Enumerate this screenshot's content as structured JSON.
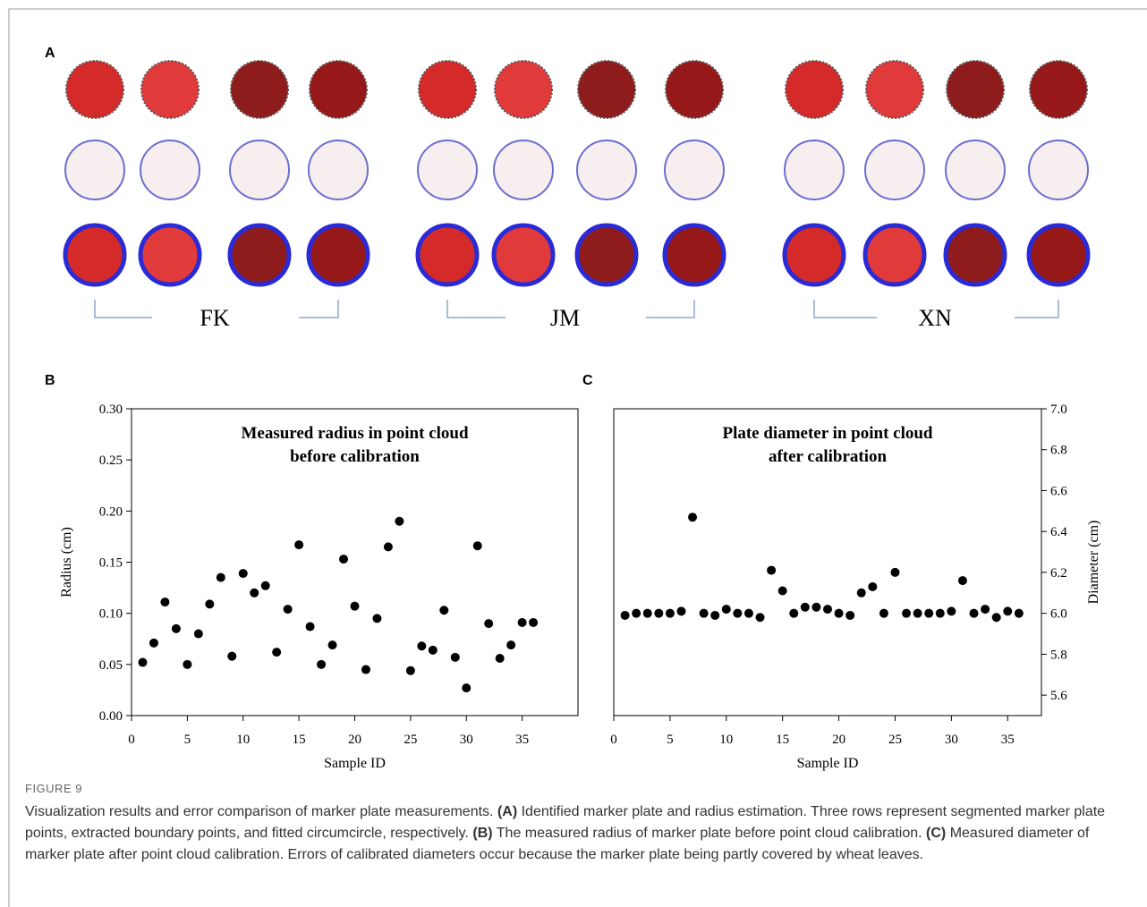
{
  "panels": {
    "a": "A",
    "b": "B",
    "c": "C"
  },
  "groups": [
    "FK",
    "JM",
    "XN"
  ],
  "chart_data": [
    {
      "type": "scatter",
      "title": [
        "Measured radius in point cloud",
        "before calibration"
      ],
      "x_label": "Sample ID",
      "y_label": "Radius (cm)",
      "x": [
        1,
        2,
        3,
        4,
        5,
        6,
        7,
        8,
        9,
        10,
        11,
        12,
        13,
        14,
        15,
        16,
        17,
        18,
        19,
        20,
        21,
        22,
        23,
        24,
        25,
        26,
        27,
        28,
        29,
        30,
        31,
        32,
        33,
        34,
        35,
        36
      ],
      "series": [
        {
          "color": "#000000",
          "values": [
            0.052,
            0.071,
            0.111,
            0.085,
            0.05,
            0.08,
            0.109,
            0.135,
            0.058,
            0.139,
            0.12,
            0.127,
            0.062,
            0.104,
            0.167,
            0.087,
            0.05,
            0.069,
            0.153,
            0.107,
            0.045,
            0.095,
            0.165,
            0.19,
            0.044,
            0.068,
            0.064,
            0.103,
            0.057,
            0.027,
            0.166,
            0.09,
            0.056,
            0.069,
            0.091,
            0.091
          ]
        }
      ],
      "xlim": [
        0,
        40
      ],
      "xticks": [
        0,
        5,
        10,
        15,
        20,
        25,
        30,
        35
      ],
      "ylim": [
        0,
        0.3
      ],
      "yticks": [
        {
          "value": 0,
          "label": "0.00"
        },
        0.05,
        {
          "value": 0.1,
          "label": "0.10"
        },
        0.15,
        {
          "value": 0.2,
          "label": "0.20"
        },
        0.25,
        {
          "value": 0.3,
          "label": "0.30"
        }
      ],
      "grid": false
    },
    {
      "type": "scatter",
      "title": [
        "Plate diameter in point cloud",
        "after calibration"
      ],
      "x_label": "Sample ID",
      "y2_label": "Diameter (cm)",
      "x": [
        1,
        2,
        3,
        4,
        5,
        6,
        7,
        8,
        9,
        10,
        11,
        12,
        13,
        14,
        15,
        16,
        17,
        18,
        19,
        20,
        21,
        22,
        23,
        24,
        25,
        26,
        27,
        28,
        29,
        30,
        31,
        32,
        33,
        34,
        35,
        36
      ],
      "series": [
        {
          "color": "#000000",
          "axis": "y2",
          "values": [
            5.99,
            6.0,
            6.0,
            6.0,
            6.0,
            6.01,
            6.47,
            6.0,
            5.99,
            6.02,
            6.0,
            6.0,
            5.98,
            6.21,
            6.11,
            6.0,
            6.03,
            6.03,
            6.02,
            6.0,
            5.99,
            6.1,
            6.13,
            6.0,
            6.2,
            6.0,
            6.0,
            6.0,
            6.0,
            6.01,
            6.16,
            6.0,
            6.02,
            5.98,
            6.01,
            6.0
          ]
        }
      ],
      "xlim": [
        0,
        38
      ],
      "xticks": [
        0,
        5,
        10,
        15,
        20,
        25,
        30,
        35
      ],
      "y2lim": [
        5.5,
        7.0
      ],
      "y2ticks": [
        5.6,
        5.8,
        {
          "value": 6,
          "label": "6.0"
        },
        6.2,
        6.4,
        6.6,
        6.8,
        {
          "value": 7,
          "label": "7.0"
        }
      ],
      "grid": false
    }
  ],
  "caption": {
    "label": "FIGURE 9",
    "parts": [
      {
        "text": "Visualization results and error comparison of marker plate measurements. ",
        "bold": false
      },
      {
        "text": "(A)",
        "bold": true
      },
      {
        "text": " Identified marker plate and radius estimation. Three rows represent segmented marker plate points, extracted boundary points, and fitted circumcircle, respectively. ",
        "bold": false
      },
      {
        "text": "(B)",
        "bold": true
      },
      {
        "text": " The measured radius of marker plate before point cloud calibration. ",
        "bold": false
      },
      {
        "text": "(C)",
        "bold": true
      },
      {
        "text": " Measured diameter of marker plate after point cloud calibration. Errors of calibrated diameters occur because the marker plate being partly covered by wheat leaves.",
        "bold": false
      }
    ]
  }
}
